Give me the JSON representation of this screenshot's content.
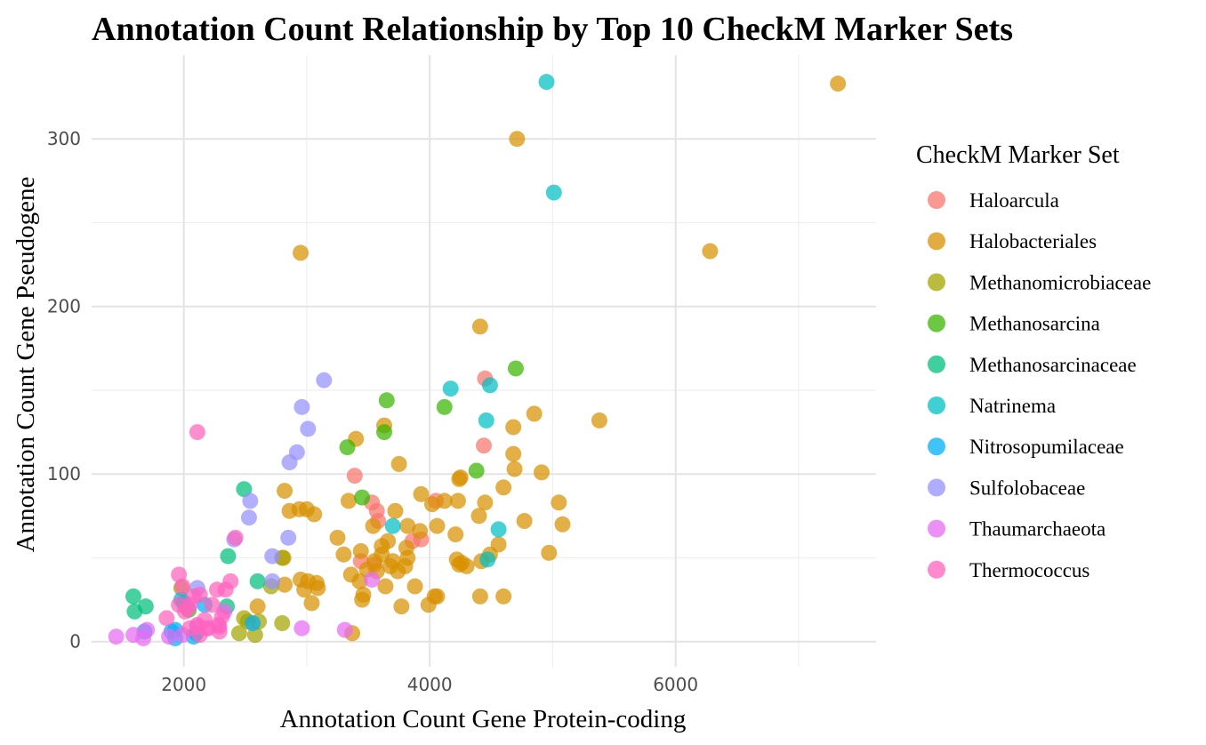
{
  "chart_data": {
    "type": "scatter",
    "title": "Annotation Count Relationship by Top 10 CheckM Marker Sets",
    "xlabel": "Annotation Count Gene Protein-coding",
    "ylabel": "Annotation Count Gene Pseudogene",
    "xlim": [
      1250,
      7630
    ],
    "ylim": [
      -15,
      350
    ],
    "x_ticks": [
      2000,
      4000,
      6000
    ],
    "x_tick_labels": [
      "2000",
      "4000",
      "6000"
    ],
    "x_minor_ticks": [
      3000,
      5000,
      7000
    ],
    "y_ticks": [
      0,
      100,
      200,
      300
    ],
    "y_tick_labels": [
      "0",
      "100",
      "200",
      "300"
    ],
    "y_minor_ticks": [
      50,
      150,
      250
    ],
    "grid": true,
    "legend": {
      "title": "CheckM Marker Set",
      "position": "right"
    },
    "series": [
      {
        "name": "Haloarcula",
        "color": "#F8766D",
        "points": [
          [
            4450,
            157
          ],
          [
            4440,
            117
          ],
          [
            3390,
            99
          ],
          [
            4050,
            84
          ],
          [
            3530,
            83
          ],
          [
            3570,
            78
          ],
          [
            3580,
            72
          ],
          [
            3860,
            60
          ],
          [
            3930,
            61
          ],
          [
            3440,
            48
          ],
          [
            3550,
            46
          ]
        ]
      },
      {
        "name": "Halobacteriales",
        "color": "#D89000",
        "points": [
          [
            7320,
            333
          ],
          [
            4710,
            300
          ],
          [
            2950,
            232
          ],
          [
            6280,
            233
          ],
          [
            4410,
            188
          ],
          [
            5380,
            132
          ],
          [
            4850,
            136
          ],
          [
            4680,
            128
          ],
          [
            3400,
            121
          ],
          [
            3630,
            129
          ],
          [
            4680,
            112
          ],
          [
            3750,
            106
          ],
          [
            4690,
            103
          ],
          [
            4910,
            101
          ],
          [
            4250,
            98
          ],
          [
            4240,
            97
          ],
          [
            4600,
            92
          ],
          [
            2820,
            90
          ],
          [
            3930,
            88
          ],
          [
            3340,
            84
          ],
          [
            4020,
            82
          ],
          [
            4120,
            84
          ],
          [
            4230,
            84
          ],
          [
            4450,
            83
          ],
          [
            5050,
            83
          ],
          [
            3000,
            79
          ],
          [
            2860,
            78
          ],
          [
            2940,
            79
          ],
          [
            3060,
            76
          ],
          [
            4400,
            75
          ],
          [
            3720,
            78
          ],
          [
            4770,
            72
          ],
          [
            5080,
            70
          ],
          [
            3920,
            66
          ],
          [
            4060,
            69
          ],
          [
            3540,
            69
          ],
          [
            3820,
            69
          ],
          [
            4210,
            64
          ],
          [
            3250,
            62
          ],
          [
            3660,
            60
          ],
          [
            4560,
            58
          ],
          [
            3610,
            57
          ],
          [
            3810,
            56
          ],
          [
            3440,
            54
          ],
          [
            3300,
            52
          ],
          [
            3610,
            52
          ],
          [
            3700,
            48
          ],
          [
            3550,
            48
          ],
          [
            3820,
            50
          ],
          [
            4420,
            48
          ],
          [
            4490,
            52
          ],
          [
            4970,
            53
          ],
          [
            3360,
            40
          ],
          [
            3490,
            43
          ],
          [
            3740,
            42
          ],
          [
            3570,
            42
          ],
          [
            4220,
            49
          ],
          [
            4240,
            46
          ],
          [
            4260,
            47
          ],
          [
            4300,
            45
          ],
          [
            2810,
            50
          ],
          [
            3010,
            36
          ],
          [
            3080,
            35
          ],
          [
            2980,
            31
          ],
          [
            3090,
            32
          ],
          [
            2820,
            34
          ],
          [
            3430,
            36
          ],
          [
            3640,
            33
          ],
          [
            3880,
            33
          ],
          [
            3680,
            45
          ],
          [
            3450,
            25
          ],
          [
            3460,
            28
          ],
          [
            4040,
            27
          ],
          [
            4060,
            27
          ],
          [
            4410,
            27
          ],
          [
            4600,
            27
          ],
          [
            3040,
            23
          ],
          [
            3770,
            21
          ],
          [
            3990,
            22
          ],
          [
            2600,
            21
          ],
          [
            3370,
            5
          ],
          [
            2950,
            37
          ],
          [
            3800,
            45
          ]
        ]
      },
      {
        "name": "Methanomicrobiaceae",
        "color": "#A3A500",
        "points": [
          [
            1980,
            32
          ],
          [
            2000,
            23
          ],
          [
            2490,
            14
          ],
          [
            2520,
            12
          ],
          [
            2610,
            12
          ],
          [
            2450,
            5
          ],
          [
            2580,
            4
          ],
          [
            2800,
            11
          ],
          [
            2710,
            33
          ],
          [
            2800,
            50
          ]
        ]
      },
      {
        "name": "Methanosarcina",
        "color": "#39B600",
        "points": [
          [
            4700,
            163
          ],
          [
            3650,
            144
          ],
          [
            4120,
            140
          ],
          [
            3630,
            125
          ],
          [
            3330,
            116
          ],
          [
            4380,
            102
          ],
          [
            3450,
            86
          ],
          [
            2040,
            19
          ]
        ]
      },
      {
        "name": "Methanosarcinaceae",
        "color": "#00BF7D",
        "points": [
          [
            2490,
            91
          ],
          [
            2360,
            51
          ],
          [
            2600,
            36
          ],
          [
            1590,
            27
          ],
          [
            1600,
            18
          ],
          [
            1690,
            21
          ],
          [
            2350,
            21
          ]
        ]
      },
      {
        "name": "Natrinema",
        "color": "#00BFC4",
        "points": [
          [
            4950,
            334
          ],
          [
            5010,
            268
          ],
          [
            4170,
            151
          ],
          [
            4490,
            153
          ],
          [
            4460,
            132
          ],
          [
            4560,
            67
          ],
          [
            4470,
            49
          ],
          [
            3700,
            69
          ]
        ]
      },
      {
        "name": "Nitrosopumilaceae",
        "color": "#00B0F6",
        "points": [
          [
            1980,
            25
          ],
          [
            2170,
            22
          ],
          [
            1930,
            7
          ],
          [
            1900,
            6
          ],
          [
            2100,
            5
          ],
          [
            2080,
            3
          ],
          [
            2560,
            11
          ],
          [
            1680,
            6
          ],
          [
            1930,
            2
          ]
        ]
      },
      {
        "name": "Sulfolobaceae",
        "color": "#9590FF",
        "points": [
          [
            3140,
            156
          ],
          [
            2960,
            140
          ],
          [
            3010,
            127
          ],
          [
            2920,
            113
          ],
          [
            2860,
            107
          ],
          [
            2540,
            84
          ],
          [
            2530,
            74
          ],
          [
            2410,
            61
          ],
          [
            2850,
            62
          ],
          [
            2720,
            51
          ],
          [
            2720,
            36
          ],
          [
            2110,
            32
          ]
        ]
      },
      {
        "name": "Thaumarchaeota",
        "color": "#E76BF3",
        "points": [
          [
            1450,
            3
          ],
          [
            1590,
            4
          ],
          [
            1670,
            2
          ],
          [
            1700,
            7
          ],
          [
            1880,
            3
          ],
          [
            1990,
            4
          ],
          [
            2110,
            9
          ],
          [
            2200,
            8
          ],
          [
            2330,
            18
          ],
          [
            2960,
            8
          ],
          [
            3310,
            7
          ],
          [
            3530,
            37
          ],
          [
            2290,
            9
          ],
          [
            2050,
            22
          ]
        ]
      },
      {
        "name": "Thermococcus",
        "color": "#FF62BC",
        "points": [
          [
            2110,
            125
          ],
          [
            2420,
            62
          ],
          [
            1960,
            40
          ],
          [
            2380,
            36
          ],
          [
            2270,
            31
          ],
          [
            2340,
            31
          ],
          [
            2130,
            28
          ],
          [
            1960,
            22
          ],
          [
            2080,
            27
          ],
          [
            2030,
            20
          ],
          [
            2230,
            22
          ],
          [
            2310,
            15
          ],
          [
            2280,
            10
          ],
          [
            2290,
            6
          ],
          [
            2170,
            13
          ],
          [
            2110,
            10
          ],
          [
            2190,
            8
          ],
          [
            2050,
            8
          ],
          [
            1860,
            14
          ],
          [
            2010,
            18
          ],
          [
            1990,
            33
          ],
          [
            2130,
            4
          ]
        ]
      }
    ]
  }
}
